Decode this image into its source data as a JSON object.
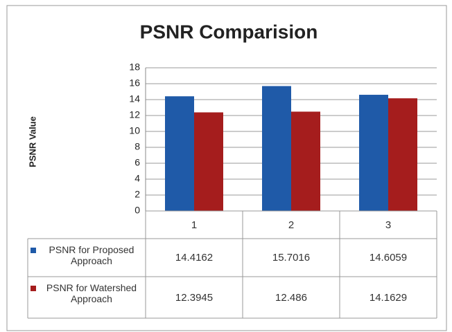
{
  "chart_data": {
    "type": "bar",
    "title": "PSNR Comparision",
    "y_label": "PSNR Value",
    "categories": [
      "1",
      "2",
      "3"
    ],
    "series": [
      {
        "name": "PSNR for Proposed Approach",
        "color": "#1f5aa8",
        "values": [
          14.4162,
          15.7016,
          14.6059
        ]
      },
      {
        "name": "PSNR for Watershed Approach",
        "color": "#a51d1d",
        "values": [
          12.3945,
          12.486,
          14.1629
        ]
      }
    ],
    "ylim": [
      0,
      18
    ],
    "yticks": [
      0,
      2,
      4,
      6,
      8,
      10,
      12,
      14,
      16,
      18
    ],
    "grid": true,
    "data_table": true
  }
}
